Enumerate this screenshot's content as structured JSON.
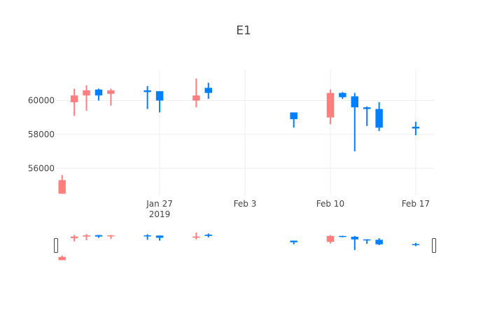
{
  "chart_data": {
    "type": "candlestick",
    "title": "E1",
    "xlabel": "",
    "ylabel": "",
    "x_range": [
      "2019-01-19",
      "2019-02-18"
    ],
    "ylim": [
      54400,
      61800
    ],
    "y_ticks": [
      56000,
      58000,
      60000
    ],
    "x_ticks": [
      {
        "date": "2019-01-27",
        "label": "Jan 27",
        "sublabel": "2019"
      },
      {
        "date": "2019-02-03",
        "label": "Feb 3",
        "sublabel": ""
      },
      {
        "date": "2019-02-10",
        "label": "Feb 10",
        "sublabel": ""
      },
      {
        "date": "2019-02-17",
        "label": "Feb 17",
        "sublabel": ""
      }
    ],
    "grid": true,
    "legend": "none",
    "rangeslider": true,
    "increasing_color": "#ff7f7f",
    "decreasing_color": "#007fff",
    "candles": [
      {
        "date": "2019-01-19",
        "open": 54500,
        "high": 55600,
        "low": 54500,
        "close": 55300
      },
      {
        "date": "2019-01-20",
        "open": 59900,
        "high": 60700,
        "low": 59100,
        "close": 60300
      },
      {
        "date": "2019-01-21",
        "open": 60300,
        "high": 60900,
        "low": 59400,
        "close": 60600
      },
      {
        "date": "2019-01-22",
        "open": 60650,
        "high": 60700,
        "low": 60000,
        "close": 60300
      },
      {
        "date": "2019-01-23",
        "open": 60400,
        "high": 60700,
        "low": 59700,
        "close": 60600
      },
      {
        "date": "2019-01-26",
        "open": 60600,
        "high": 60850,
        "low": 59500,
        "close": 60500
      },
      {
        "date": "2019-01-27",
        "open": 60550,
        "high": 60550,
        "low": 59300,
        "close": 60000
      },
      {
        "date": "2019-01-30",
        "open": 60000,
        "high": 61300,
        "low": 59600,
        "close": 60300
      },
      {
        "date": "2019-01-31",
        "open": 60750,
        "high": 61050,
        "low": 60100,
        "close": 60450
      },
      {
        "date": "2019-02-07",
        "open": 59300,
        "high": 59300,
        "low": 58400,
        "close": 58900
      },
      {
        "date": "2019-02-10",
        "open": 59000,
        "high": 60650,
        "low": 58600,
        "close": 60450
      },
      {
        "date": "2019-02-11",
        "open": 60450,
        "high": 60500,
        "low": 60100,
        "close": 60200
      },
      {
        "date": "2019-02-12",
        "open": 60250,
        "high": 60450,
        "low": 57000,
        "close": 59600
      },
      {
        "date": "2019-02-13",
        "open": 59600,
        "high": 59650,
        "low": 58500,
        "close": 59500
      },
      {
        "date": "2019-02-14",
        "open": 59500,
        "high": 59900,
        "low": 58200,
        "close": 58400
      },
      {
        "date": "2019-02-17",
        "open": 58450,
        "high": 58750,
        "low": 57950,
        "close": 58350
      }
    ]
  }
}
